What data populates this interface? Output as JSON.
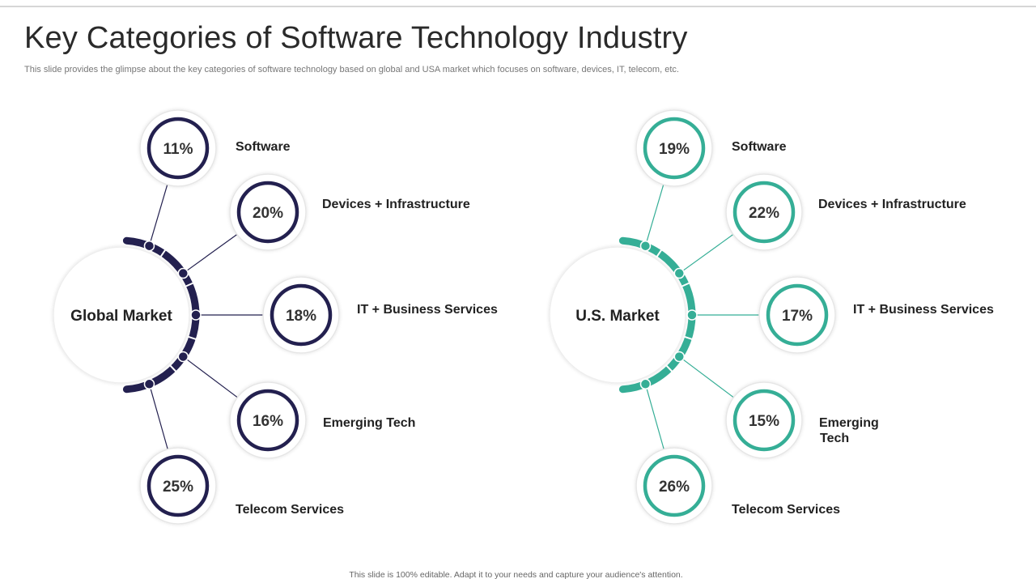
{
  "slide": {
    "title": "Key Categories of Software Technology Industry",
    "subtitle": "This slide provides the glimpse about the key categories of software technology based on global and USA market which focuses on software, devices, IT, telecom, etc.",
    "footer": "This slide is 100% editable. Adapt it to your needs and capture your audience's attention."
  },
  "markets": [
    {
      "name": "Global Market",
      "color": "#23204f",
      "items": [
        {
          "label": "Software",
          "value": "11%"
        },
        {
          "label": "Devices + Infrastructure",
          "value": "20%"
        },
        {
          "label": "IT + Business Services",
          "value": "18%"
        },
        {
          "label": "Emerging Tech",
          "value": "16%"
        },
        {
          "label": "Telecom Services",
          "value": "25%"
        }
      ]
    },
    {
      "name": "U.S. Market",
      "color": "#35ae96",
      "items": [
        {
          "label": "Software",
          "value": "19%"
        },
        {
          "label": "Devices + Infrastructure",
          "value": "22%"
        },
        {
          "label": "IT + Business Services",
          "value": "17%"
        },
        {
          "label": "Emerging Tech",
          "value": "15%"
        },
        {
          "label": "Telecom Services",
          "value": "26%"
        }
      ]
    }
  ]
}
